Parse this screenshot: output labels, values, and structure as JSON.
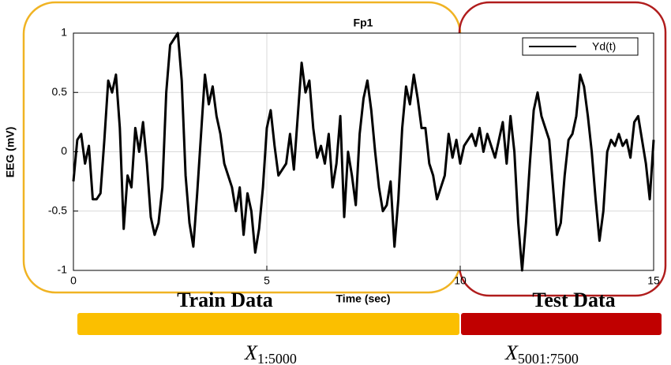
{
  "chart_data": {
    "type": "line",
    "title": "Fp1",
    "xlabel": "Time (sec)",
    "ylabel": "EEG (mV)",
    "xlim": [
      0,
      15
    ],
    "ylim": [
      -1,
      1
    ],
    "xticks": [
      0,
      5,
      10,
      15
    ],
    "yticks": [
      -1,
      -0.5,
      0,
      0.5,
      1
    ],
    "grid": true,
    "legend": "upper right",
    "x": [
      0,
      0.1,
      0.2,
      0.3,
      0.4,
      0.5,
      0.6,
      0.7,
      0.8,
      0.9,
      1,
      1.1,
      1.2,
      1.3,
      1.4,
      1.5,
      1.6,
      1.7,
      1.8,
      1.9,
      2,
      2.1,
      2.2,
      2.3,
      2.4,
      2.5,
      2.6,
      2.7,
      2.8,
      2.9,
      3,
      3.1,
      3.2,
      3.3,
      3.4,
      3.5,
      3.6,
      3.7,
      3.8,
      3.9,
      4,
      4.1,
      4.2,
      4.3,
      4.4,
      4.5,
      4.6,
      4.7,
      4.8,
      4.9,
      5,
      5.1,
      5.2,
      5.3,
      5.4,
      5.5,
      5.6,
      5.7,
      5.8,
      5.9,
      6,
      6.1,
      6.2,
      6.3,
      6.4,
      6.5,
      6.6,
      6.7,
      6.8,
      6.9,
      7,
      7.1,
      7.2,
      7.3,
      7.4,
      7.5,
      7.6,
      7.7,
      7.8,
      7.9,
      8,
      8.1,
      8.2,
      8.3,
      8.4,
      8.5,
      8.6,
      8.7,
      8.8,
      8.9,
      9,
      9.1,
      9.2,
      9.3,
      9.4,
      9.5,
      9.6,
      9.7,
      9.8,
      9.9,
      10,
      10.1,
      10.2,
      10.3,
      10.4,
      10.5,
      10.6,
      10.7,
      10.8,
      10.9,
      11,
      11.1,
      11.2,
      11.3,
      11.4,
      11.5,
      11.6,
      11.7,
      11.8,
      11.9,
      12,
      12.1,
      12.2,
      12.3,
      12.4,
      12.5,
      12.6,
      12.7,
      12.8,
      12.9,
      13,
      13.1,
      13.2,
      13.3,
      13.4,
      13.5,
      13.6,
      13.7,
      13.8,
      13.9,
      14,
      14.1,
      14.2,
      14.3,
      14.4,
      14.5,
      14.6,
      14.7,
      14.8,
      14.9,
      15
    ],
    "series": [
      {
        "name": "Yd(t)",
        "color": "#000000",
        "values": [
          -0.25,
          0.1,
          0.15,
          -0.1,
          0.05,
          -0.4,
          -0.4,
          -0.35,
          0.1,
          0.6,
          0.5,
          0.65,
          0.2,
          -0.65,
          -0.2,
          -0.3,
          0.2,
          0,
          0.25,
          -0.1,
          -0.55,
          -0.7,
          -0.6,
          -0.3,
          0.5,
          0.9,
          0.95,
          1,
          0.6,
          -0.2,
          -0.6,
          -0.8,
          -0.35,
          0.15,
          0.65,
          0.4,
          0.55,
          0.3,
          0.15,
          -0.1,
          -0.2,
          -0.3,
          -0.5,
          -0.3,
          -0.7,
          -0.35,
          -0.5,
          -0.85,
          -0.65,
          -0.3,
          0.2,
          0.35,
          0.05,
          -0.2,
          -0.15,
          -0.1,
          0.15,
          -0.15,
          0.3,
          0.75,
          0.5,
          0.6,
          0.2,
          -0.05,
          0.05,
          -0.1,
          0.15,
          -0.3,
          -0.1,
          0.3,
          -0.55,
          0,
          -0.2,
          -0.45,
          0.15,
          0.45,
          0.6,
          0.35,
          0,
          -0.3,
          -0.5,
          -0.45,
          -0.25,
          -0.8,
          -0.4,
          0.2,
          0.55,
          0.4,
          0.65,
          0.45,
          0.2,
          0.2,
          -0.1,
          -0.2,
          -0.4,
          -0.3,
          -0.2,
          0.15,
          -0.05,
          0.1,
          -0.1,
          0.05,
          0.1,
          0.15,
          0.05,
          0.2,
          0,
          0.15,
          0.05,
          -0.05,
          0.1,
          0.25,
          -0.1,
          0.3,
          0,
          -0.6,
          -1,
          -0.6,
          -0.1,
          0.35,
          0.5,
          0.3,
          0.2,
          0.1,
          -0.3,
          -0.7,
          -0.6,
          -0.2,
          0.1,
          0.15,
          0.3,
          0.65,
          0.55,
          0.3,
          0,
          -0.4,
          -0.75,
          -0.5,
          0,
          0.1,
          0.05,
          0.15,
          0.05,
          0.1,
          -0.05,
          0.25,
          0.3,
          0.1,
          -0.1,
          -0.4,
          0.1
        ]
      }
    ],
    "annotations": {
      "train": "Train Data",
      "test": "Test Data",
      "train_range": {
        "symbol": "X",
        "subscript": "1:5000"
      },
      "test_range": {
        "symbol": "X",
        "subscript": "5001:7500"
      }
    }
  }
}
